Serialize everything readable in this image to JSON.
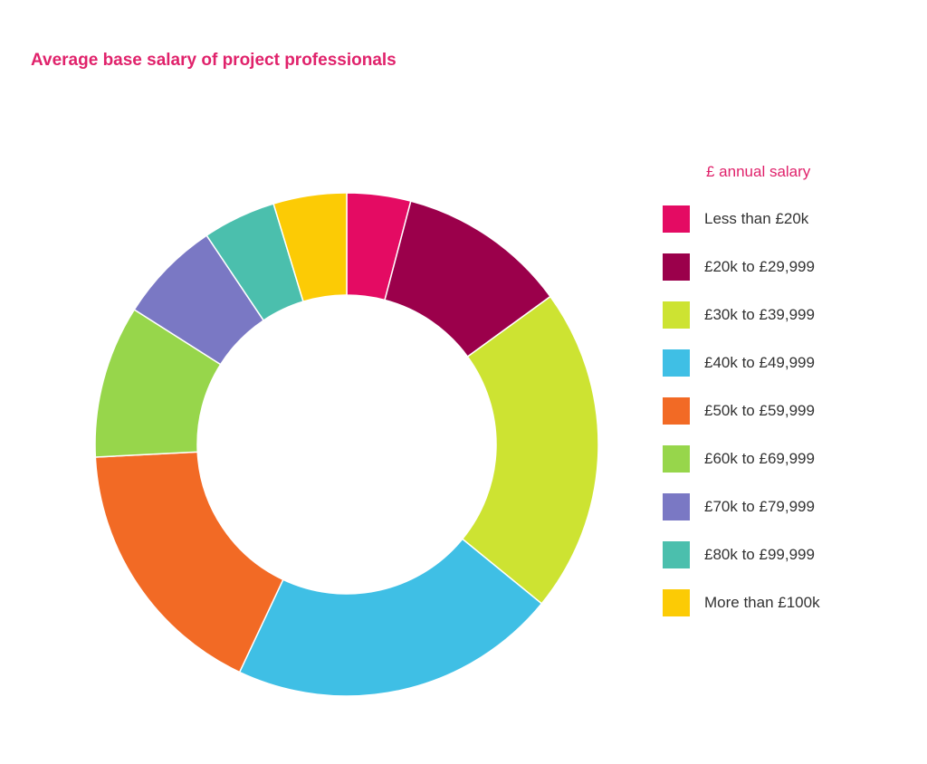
{
  "chart_data": {
    "type": "pie",
    "variant": "donut",
    "title": "Average base salary of project professionals",
    "legend_title": "£ annual salary",
    "legend_position": "right",
    "categories": [
      "Less than £20k",
      "£20k to £29,999",
      "£30k to £39,999",
      "£40k to £49,999",
      "£50k to £59,999",
      "£60k to £69,999",
      "£70k to £79,999",
      "£80k to £99,999",
      "More than £100k"
    ],
    "values": [
      4.1,
      10.9,
      20.9,
      21.1,
      17.2,
      9.8,
      6.6,
      4.7,
      4.7
    ],
    "colors": [
      "#e40b63",
      "#9b004b",
      "#cde332",
      "#3fbfe5",
      "#f26a25",
      "#97d64b",
      "#7a78c4",
      "#4bbfad",
      "#fccb05"
    ]
  }
}
